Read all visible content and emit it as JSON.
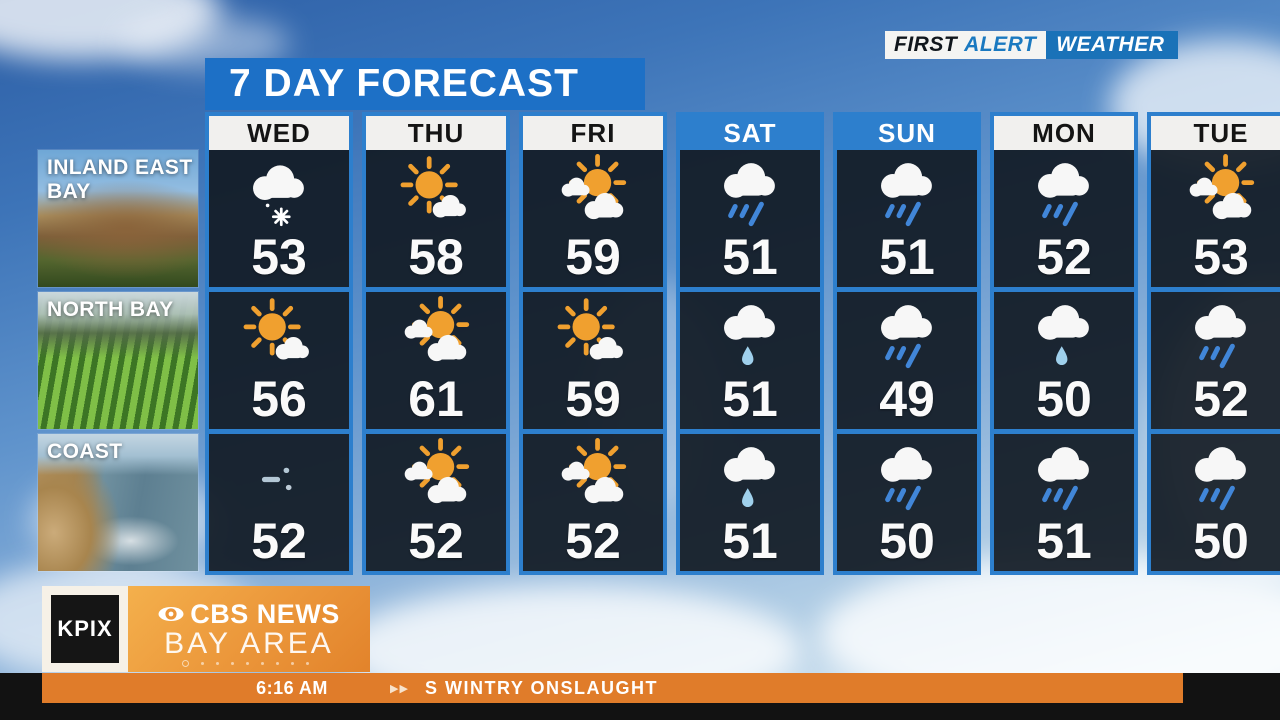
{
  "brand": {
    "first": "FIRST",
    "alert": "ALERT",
    "weather": "WEATHER"
  },
  "title": "7 DAY FORECAST",
  "regions": [
    {
      "name": "INLAND EAST BAY"
    },
    {
      "name": "NORTH BAY"
    },
    {
      "name": "COAST"
    }
  ],
  "days": [
    {
      "label": "WED",
      "weekend": false,
      "cells": [
        {
          "icon": "snow-shower",
          "temp": "53"
        },
        {
          "icon": "mostly-sunny",
          "temp": "56"
        },
        {
          "icon": "flurries",
          "temp": "52"
        }
      ]
    },
    {
      "label": "THU",
      "weekend": false,
      "cells": [
        {
          "icon": "mostly-sunny",
          "temp": "58"
        },
        {
          "icon": "partly-cloudy",
          "temp": "61"
        },
        {
          "icon": "partly-cloudy",
          "temp": "52"
        }
      ]
    },
    {
      "label": "FRI",
      "weekend": false,
      "cells": [
        {
          "icon": "partly-cloudy",
          "temp": "59"
        },
        {
          "icon": "mostly-sunny",
          "temp": "59"
        },
        {
          "icon": "partly-cloudy",
          "temp": "52"
        }
      ]
    },
    {
      "label": "SAT",
      "weekend": true,
      "cells": [
        {
          "icon": "rain",
          "temp": "51"
        },
        {
          "icon": "drizzle",
          "temp": "51"
        },
        {
          "icon": "drizzle",
          "temp": "51"
        }
      ]
    },
    {
      "label": "SUN",
      "weekend": true,
      "cells": [
        {
          "icon": "rain",
          "temp": "51"
        },
        {
          "icon": "rain",
          "temp": "49"
        },
        {
          "icon": "rain",
          "temp": "50"
        }
      ]
    },
    {
      "label": "MON",
      "weekend": false,
      "cells": [
        {
          "icon": "rain",
          "temp": "52"
        },
        {
          "icon": "drizzle",
          "temp": "50"
        },
        {
          "icon": "rain",
          "temp": "51"
        }
      ]
    },
    {
      "label": "TUE",
      "weekend": false,
      "cells": [
        {
          "icon": "partly-cloudy",
          "temp": "53"
        },
        {
          "icon": "rain",
          "temp": "52"
        },
        {
          "icon": "rain",
          "temp": "50"
        }
      ]
    }
  ],
  "station": {
    "call_sign": "KPIX",
    "network": "CBS NEWS",
    "market": "BAY AREA"
  },
  "ticker": {
    "time": "6:16 AM",
    "headline": "S WINTRY ONSLAUGHT"
  },
  "colors": {
    "banner_blue": "#1d70c6",
    "border_blue": "#2d7fcd",
    "weekend_blue": "#2d7fcd",
    "cell_dark": "#121b25",
    "sun_orange": "#f0a02f",
    "rain_blue": "#4186d8",
    "ticker_orange": "#e07c2a",
    "brand_orange": "#eb963a"
  }
}
